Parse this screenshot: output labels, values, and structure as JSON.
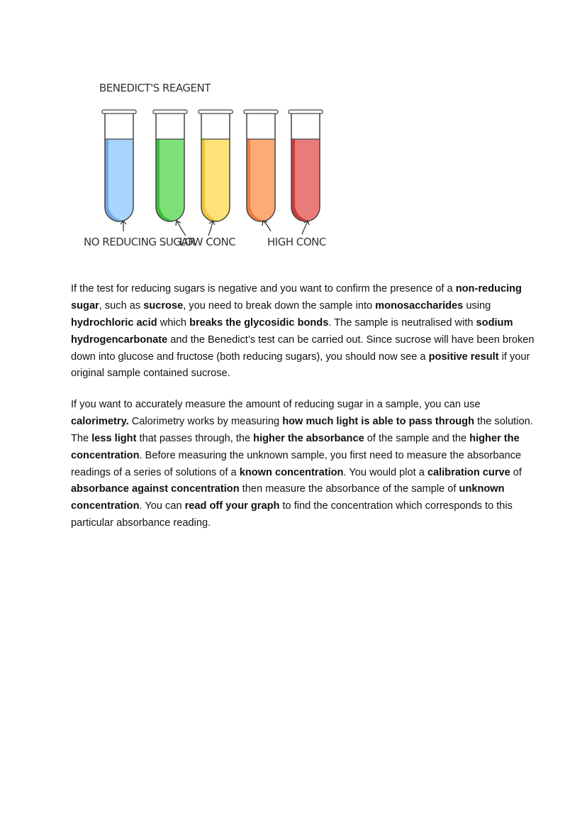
{
  "figure": {
    "title": "BENEDICT'S REAGENT",
    "labels": {
      "none": "NO REDUCING SUGAR",
      "low": "LOW CONC",
      "high": "HIGH CONC"
    },
    "tube_colors": [
      {
        "fill": "#a9d4fb",
        "shade": "#6fa8e8"
      },
      {
        "fill": "#7fe07a",
        "shade": "#3cbf3a"
      },
      {
        "fill": "#fde27a",
        "shade": "#f2c43c"
      },
      {
        "fill": "#fdaa78",
        "shade": "#f47a3a"
      },
      {
        "fill": "#ea7b7b",
        "shade": "#cc3a3a"
      }
    ]
  },
  "paragraphs": [
    {
      "lines": [
        [
          {
            "t": "If the test for reducing sugars is negative and you want to confirm the presence of a ",
            "b": false
          },
          {
            "t": "non-reducing",
            "b": true
          }
        ],
        [
          {
            "t": "sugar",
            "b": true
          },
          {
            "t": ", such as ",
            "b": false
          },
          {
            "t": "sucrose",
            "b": true
          },
          {
            "t": ", you need to break down the sample into ",
            "b": false
          },
          {
            "t": "monosaccharides",
            "b": true
          },
          {
            "t": " using",
            "b": false
          }
        ],
        [
          {
            "t": "hydrochloric acid",
            "b": true
          },
          {
            "t": " which ",
            "b": false
          },
          {
            "t": "breaks the glycosidic bonds",
            "b": true
          },
          {
            "t": ". The sample is neutralised with ",
            "b": false
          },
          {
            "t": "sodium",
            "b": true
          }
        ],
        [
          {
            "t": "hydrogencarbonate",
            "b": true
          },
          {
            "t": " and the Benedict’s test can be carried out. Since sucrose will have been broken",
            "b": false
          }
        ],
        [
          {
            "t": "down into glucose and fructose (both reducing sugars), you should now see a ",
            "b": false
          },
          {
            "t": "positive result",
            "b": true
          },
          {
            "t": " if your",
            "b": false
          }
        ],
        [
          {
            "t": "original sample contained sucrose.",
            "b": false
          }
        ]
      ]
    },
    {
      "lines": [
        [
          {
            "t": "If you want to accurately measure the amount of reducing sugar in a sample, you can use",
            "b": false
          }
        ],
        [
          {
            "t": "calorimetry.",
            "b": true
          },
          {
            "t": " Calorimetry works by measuring ",
            "b": false
          },
          {
            "t": "how much light is able to pass through",
            "b": true
          },
          {
            "t": " the solution.",
            "b": false
          }
        ],
        [
          {
            "t": "The ",
            "b": false
          },
          {
            "t": "less light",
            "b": true
          },
          {
            "t": " that passes through, the ",
            "b": false
          },
          {
            "t": "higher the absorbance",
            "b": true
          },
          {
            "t": " of the sample and the ",
            "b": false
          },
          {
            "t": "higher the",
            "b": true
          }
        ],
        [
          {
            "t": "concentration",
            "b": true
          },
          {
            "t": ". Before measuring the unknown sample, you first need to measure the absorbance",
            "b": false
          }
        ],
        [
          {
            "t": "readings of a series of solutions of a ",
            "b": false
          },
          {
            "t": "known concentration",
            "b": true
          },
          {
            "t": ". You would plot a ",
            "b": false
          },
          {
            "t": "calibration curve",
            "b": true
          },
          {
            "t": " of",
            "b": false
          }
        ],
        [
          {
            "t": "absorbance against concentration",
            "b": true
          },
          {
            "t": " then measure the absorbance of the sample of ",
            "b": false
          },
          {
            "t": "unknown",
            "b": true
          }
        ],
        [
          {
            "t": "concentration",
            "b": true
          },
          {
            "t": ". You can ",
            "b": false
          },
          {
            "t": "read off your graph",
            "b": true
          },
          {
            "t": " to find the concentration which corresponds to this",
            "b": false
          }
        ],
        [
          {
            "t": "particular absorbance reading.",
            "b": false
          }
        ]
      ]
    }
  ]
}
